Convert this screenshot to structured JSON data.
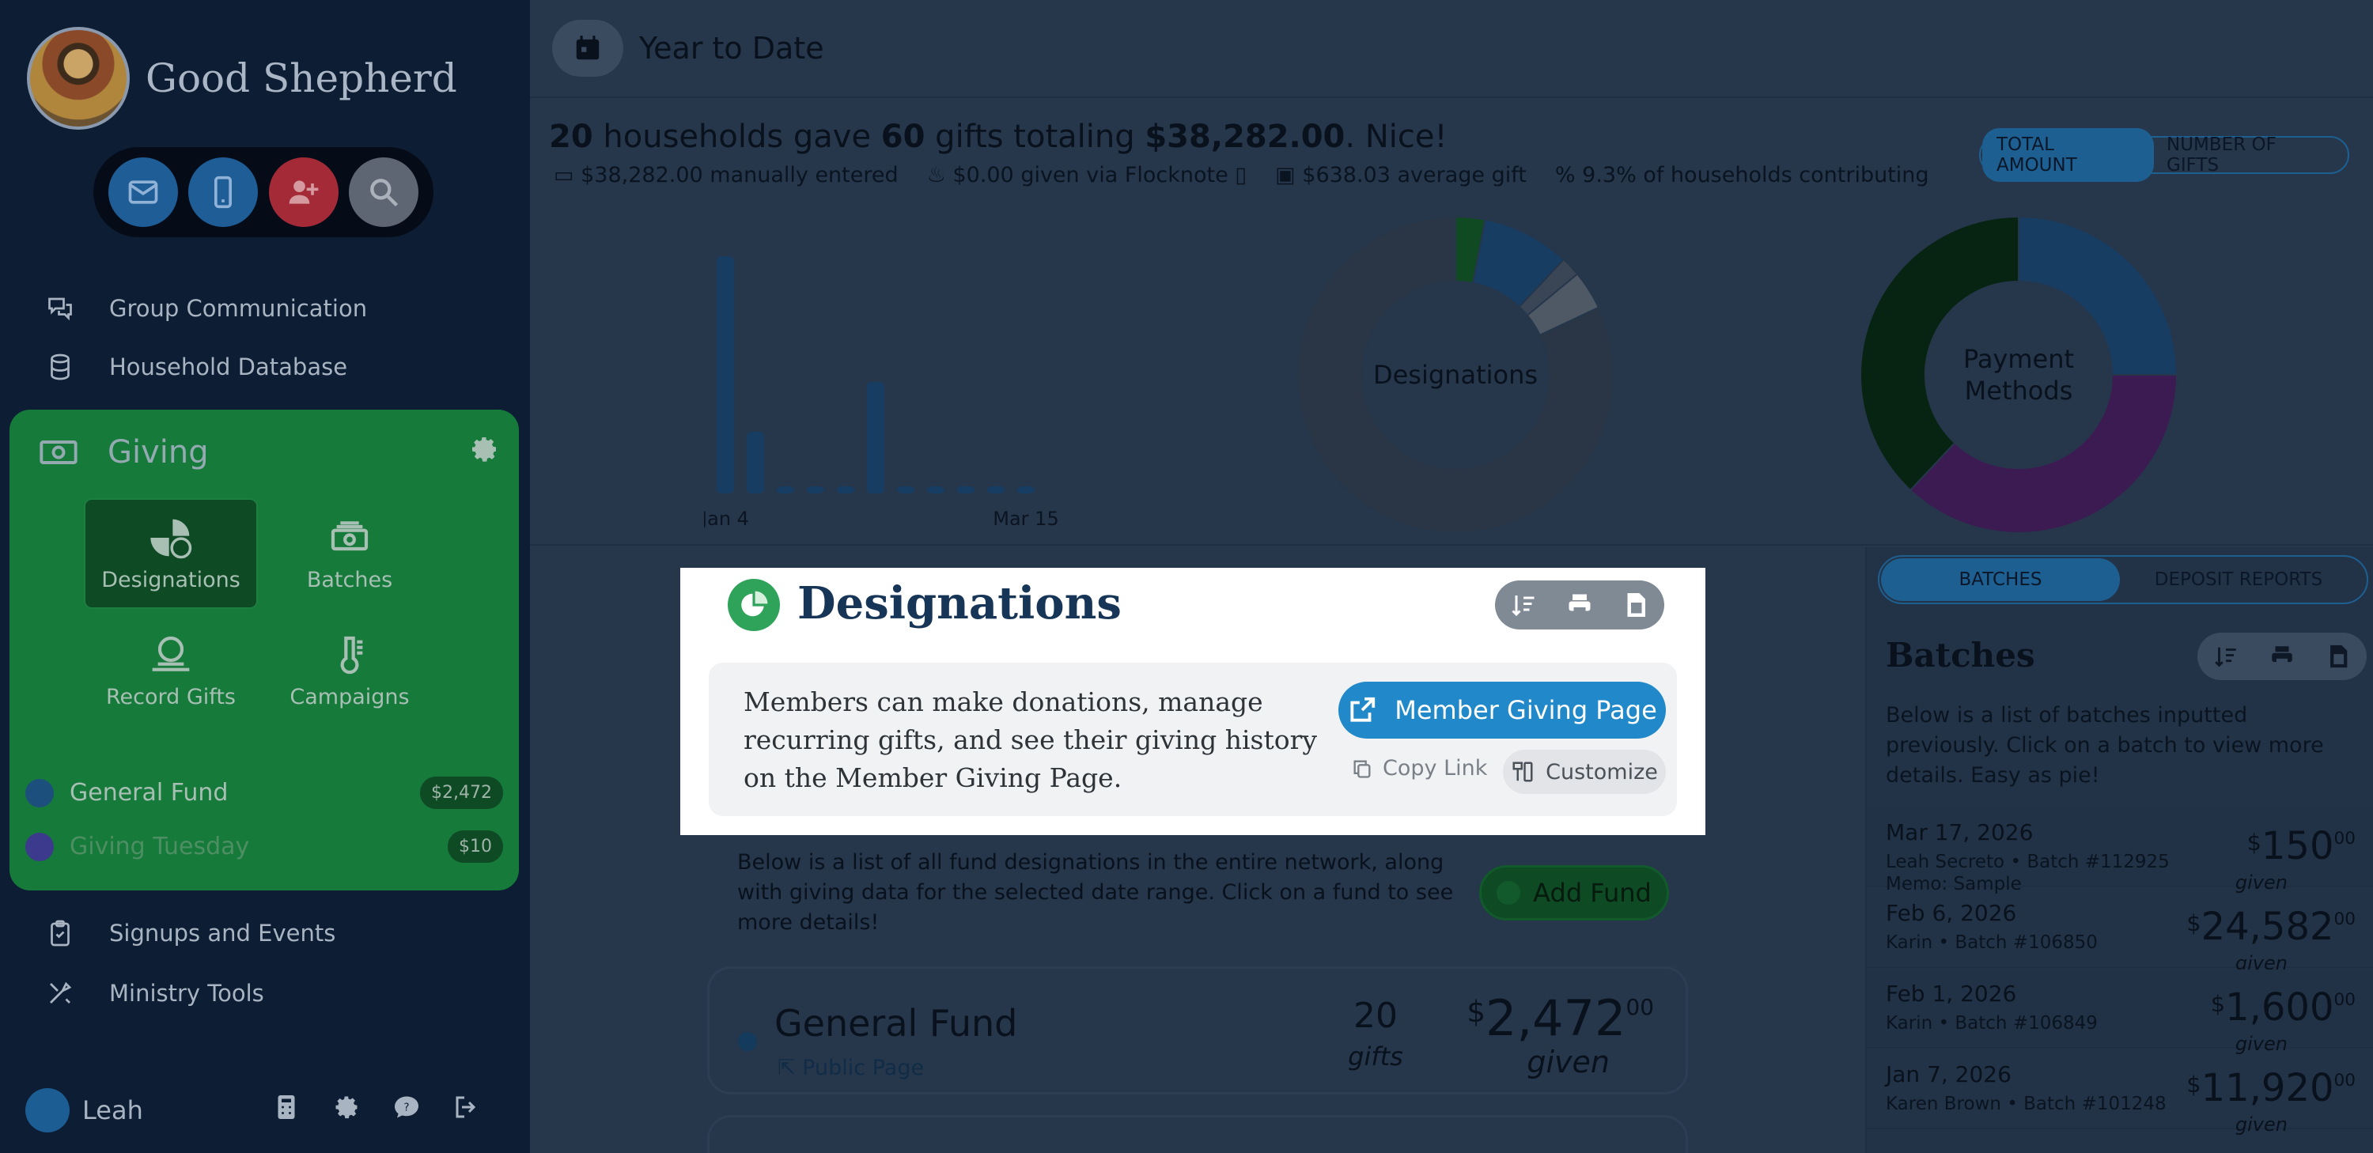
{
  "brand": {
    "name": "Good Shepherd"
  },
  "sidebar": {
    "quick_buttons": [
      {
        "icon": "mail-icon",
        "color": "#1f5d97"
      },
      {
        "icon": "phone-icon",
        "color": "#1f5d97"
      },
      {
        "icon": "add-user-icon",
        "color": "#a32a36"
      },
      {
        "icon": "search-icon",
        "color": "#5d6672"
      }
    ],
    "nav_top": [
      {
        "label": "Group Communication",
        "icon": "chat-icon"
      },
      {
        "label": "Household Database",
        "icon": "database-icon"
      }
    ],
    "giving": {
      "label": "Giving",
      "tiles": [
        {
          "label": "Designations",
          "icon": "pie-dollar-icon",
          "active": true
        },
        {
          "label": "Batches",
          "icon": "money-stack-icon",
          "active": false
        },
        {
          "label": "Record Gifts",
          "icon": "coin-hand-icon",
          "active": false
        },
        {
          "label": "Campaigns",
          "icon": "thermometer-icon",
          "active": false
        }
      ],
      "funds": [
        {
          "name": "General Fund",
          "amount": "$2,472",
          "color": "#1d4f7c"
        },
        {
          "name": "Giving Tuesday",
          "amount": "$10",
          "color": "#3b3a8c"
        }
      ]
    },
    "nav_bottom": [
      {
        "label": "Signups and Events",
        "icon": "clipboard-icon"
      },
      {
        "label": "Ministry Tools",
        "icon": "tools-icon"
      }
    ],
    "user": {
      "name": "Leah"
    }
  },
  "main": {
    "topbar_title": "Year to Date",
    "summary": {
      "households": "20",
      "t1": " households gave ",
      "gifts": "60",
      "t2": " gifts totaling ",
      "total": "$38,282.00",
      "t3": ". Nice!"
    },
    "stats": [
      {
        "value": "$38,282.00",
        "text": " manually entered"
      },
      {
        "value": "$0.00",
        "text": " given via Flocknote"
      },
      {
        "value": "$638.03",
        "text": " average gift"
      },
      {
        "value": "9.3%",
        "text": " of households contributing"
      }
    ],
    "toggle": {
      "on": "TOTAL AMOUNT",
      "off": "NUMBER OF GIFTS"
    },
    "designations_desc": "Below is a list of all fund designations in the entire network, along with giving data for the selected date range. Click on a fund to see more details!",
    "add_fund": "Add Fund",
    "fund_card": {
      "name": "General Fund",
      "public_page": "Public Page",
      "gifts": "20",
      "gifts_label": "gifts",
      "amount_whole": "2,472",
      "amount_cents": "00",
      "given_label": "given"
    }
  },
  "chart_data": [
    {
      "type": "bar",
      "categories": [
        "Jan 4",
        "",
        "",
        "",
        "",
        "",
        "",
        "",
        "",
        "",
        "Mar 15"
      ],
      "values": [
        100,
        26,
        3,
        3,
        3,
        47,
        3,
        3,
        3,
        3,
        3
      ],
      "title": "",
      "xlabel": "",
      "ylabel": "",
      "ylim": [
        0,
        100
      ],
      "color": "#173d63"
    },
    {
      "type": "pie",
      "title": "Designations",
      "slices": [
        {
          "value": 3,
          "color": "#0f4a22"
        },
        {
          "value": 9,
          "color": "#173d63"
        },
        {
          "value": 2,
          "color": "#3a4656"
        },
        {
          "value": 4,
          "color": "#4f5966"
        },
        {
          "value": 82,
          "color": "#2a3646"
        }
      ]
    },
    {
      "type": "pie",
      "title": "Payment Methods",
      "slices": [
        {
          "value": 25,
          "color": "#173d63"
        },
        {
          "value": 37,
          "color": "#3c1b52"
        },
        {
          "value": 38,
          "color": "#072412"
        }
      ]
    }
  ],
  "right_panel": {
    "toggle": {
      "on": "BATCHES",
      "off": "DEPOSIT REPORTS"
    },
    "title": "Batches",
    "desc": "Below is a list of batches inputted previously. Click on a batch to view more details. Easy as pie!",
    "batches": [
      {
        "date": "Mar 17, 2026",
        "meta": "Leah Secreto  •  Batch #112925",
        "memo": "Memo: Sample",
        "whole": "150",
        "cents": "00",
        "given": "given"
      },
      {
        "date": "Feb 6, 2026",
        "meta": "Karin  •  Batch #106850",
        "memo": "",
        "whole": "24,582",
        "cents": "00",
        "given": "given"
      },
      {
        "date": "Feb 1, 2026",
        "meta": "Karin  •  Batch #106849",
        "memo": "",
        "whole": "1,600",
        "cents": "00",
        "given": "given"
      },
      {
        "date": "Jan 7, 2026",
        "meta": "Karen Brown  •  Batch #101248",
        "memo": "",
        "whole": "11,920",
        "cents": "00",
        "given": "given"
      }
    ]
  },
  "spotlight": {
    "title": "Designations",
    "text": "Members can make donations, manage recurring gifts, and see their giving history on the Member Giving Page.",
    "primary_button": "Member Giving Page",
    "copy_link": "Copy Link",
    "customize": "Customize"
  }
}
